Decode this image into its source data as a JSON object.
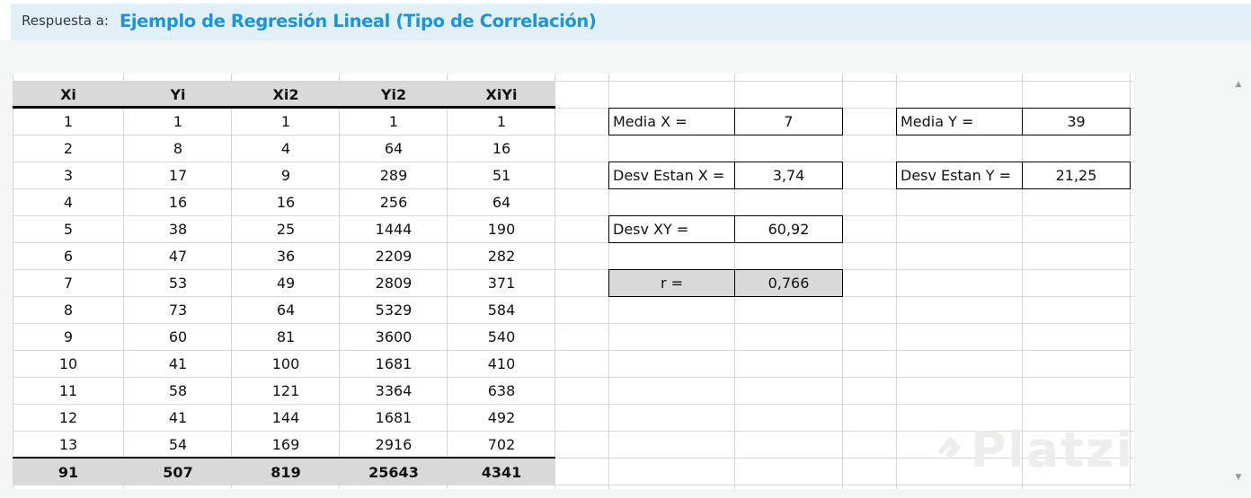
{
  "reply": {
    "label": "Respuesta a:",
    "title": "Ejemplo de Regresión Lineal (Tipo de Correlación)"
  },
  "table": {
    "headers": [
      "Xi",
      "Yi",
      "Xi2",
      "Yi2",
      "XiYi"
    ],
    "rows": [
      [
        "1",
        "1",
        "1",
        "1",
        "1"
      ],
      [
        "2",
        "8",
        "4",
        "64",
        "16"
      ],
      [
        "3",
        "17",
        "9",
        "289",
        "51"
      ],
      [
        "4",
        "16",
        "16",
        "256",
        "64"
      ],
      [
        "5",
        "38",
        "25",
        "1444",
        "190"
      ],
      [
        "6",
        "47",
        "36",
        "2209",
        "282"
      ],
      [
        "7",
        "53",
        "49",
        "2809",
        "371"
      ],
      [
        "8",
        "73",
        "64",
        "5329",
        "584"
      ],
      [
        "9",
        "60",
        "81",
        "3600",
        "540"
      ],
      [
        "10",
        "41",
        "100",
        "1681",
        "410"
      ],
      [
        "11",
        "58",
        "121",
        "3364",
        "638"
      ],
      [
        "12",
        "41",
        "144",
        "1681",
        "492"
      ],
      [
        "13",
        "54",
        "169",
        "2916",
        "702"
      ]
    ],
    "totals": [
      "91",
      "507",
      "819",
      "25643",
      "4341"
    ]
  },
  "stats": {
    "media_x": {
      "label": "Media X =",
      "value": "7"
    },
    "desv_x": {
      "label": "Desv Estan X =",
      "value": "3,74"
    },
    "desv_xy": {
      "label": "Desv XY =",
      "value": "60,92"
    },
    "r": {
      "label": "r =",
      "value": "0,766"
    },
    "media_y": {
      "label": "Media Y =",
      "value": "39"
    },
    "desv_y": {
      "label": "Desv Estan Y =",
      "value": "21,25"
    }
  },
  "watermark": {
    "text": "Platzi"
  },
  "colors": {
    "reply_bar": "#e1eff6",
    "link": "#1e94d6",
    "header_fill": "#d9d9d9",
    "gridline": "#d8d8d8"
  },
  "icons": {
    "scroll_up": "triangle-up-icon",
    "scroll_down": "triangle-down-icon",
    "watermark": "platzi-logo-icon"
  }
}
